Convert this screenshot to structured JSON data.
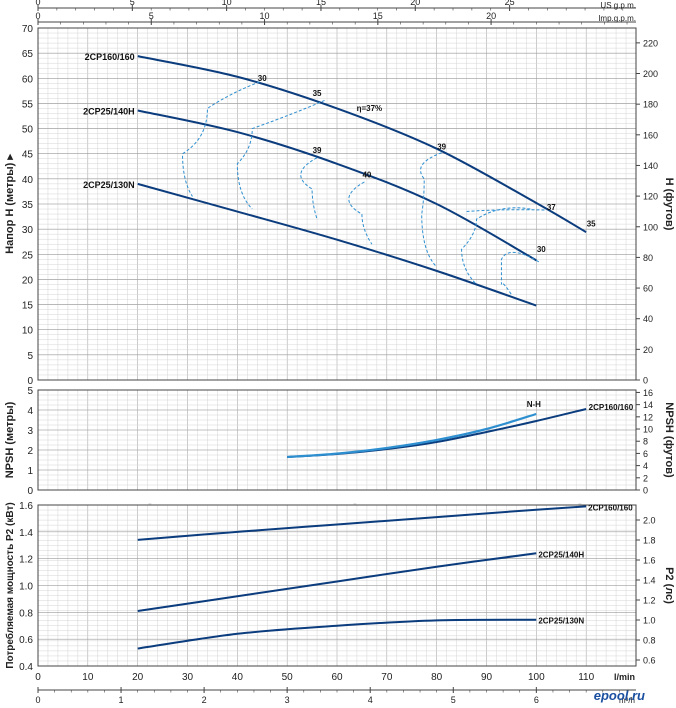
{
  "watermark": "ePool.ru",
  "logo": "epool.ru",
  "top_axes": {
    "us_label": "US g.p.m.",
    "imp_label": "Imp.g.p.m.",
    "us_ticks": [
      "0",
      "5",
      "10",
      "15",
      "20",
      "25"
    ],
    "imp_ticks": [
      "0",
      "5",
      "10",
      "15",
      "20"
    ]
  },
  "bottom_axes": {
    "lmin_label": "l/min",
    "m3h_label": "m³/h",
    "lmin_ticks": [
      "0",
      "10",
      "20",
      "30",
      "40",
      "50",
      "60",
      "70",
      "80",
      "90",
      "100",
      "110"
    ],
    "m3h_ticks": [
      "0",
      "1",
      "2",
      "3",
      "4",
      "5",
      "6"
    ]
  },
  "chart_data": [
    {
      "type": "line",
      "panel": "head",
      "ylabel": "Напор H (метры)",
      "y2label": "H (футов)",
      "xlabel": "l/min",
      "xlim": [
        0,
        120
      ],
      "ylim": [
        0,
        70
      ],
      "y2lim": [
        0,
        229.7
      ],
      "yticks": [
        "0",
        "5",
        "10",
        "15",
        "20",
        "25",
        "30",
        "35",
        "40",
        "45",
        "50",
        "55",
        "60",
        "65",
        "70"
      ],
      "y2ticks": [
        "0",
        "20",
        "40",
        "60",
        "80",
        "100",
        "120",
        "140",
        "160",
        "180",
        "200",
        "220"
      ],
      "grid": true,
      "series": [
        {
          "name": "2CP160/160",
          "color": "#0b3c7d",
          "x": [
            20,
            40,
            60,
            80,
            100,
            110
          ],
          "y": [
            64.4,
            60.3,
            54,
            46,
            35.2,
            29.4
          ]
        },
        {
          "name": "2CP25/140H",
          "color": "#0b3c7d",
          "x": [
            20,
            40,
            60,
            80,
            100
          ],
          "y": [
            53.6,
            49.3,
            43,
            35,
            23.8
          ]
        },
        {
          "name": "2CP25/130N",
          "color": "#0b3c7d",
          "x": [
            20,
            40,
            60,
            80,
            100
          ],
          "y": [
            39,
            33.5,
            27.9,
            21.7,
            14.8
          ]
        }
      ],
      "efficiency_label_eta": "η=37%",
      "efficiency_labels": [
        {
          "text": "30",
          "x": 45,
          "y": 59.5
        },
        {
          "text": "35",
          "x": 56,
          "y": 56.5
        },
        {
          "text": "39",
          "x": 56,
          "y": 45.1
        },
        {
          "text": "40",
          "x": 66,
          "y": 40.3
        },
        {
          "text": "39",
          "x": 81,
          "y": 45.8
        },
        {
          "text": "37",
          "x": 103,
          "y": 33.8
        },
        {
          "text": "35",
          "x": 111,
          "y": 30.5
        },
        {
          "text": "30",
          "x": 101,
          "y": 25.5
        }
      ]
    },
    {
      "type": "line",
      "panel": "npsh",
      "ylabel": "NPSH (метры)",
      "y2label": "NPSH (футов)",
      "xlim": [
        0,
        120
      ],
      "ylim": [
        0,
        5
      ],
      "y2lim": [
        0,
        16.4
      ],
      "yticks": [
        "0",
        "1",
        "2",
        "3",
        "4",
        "5"
      ],
      "y2ticks": [
        "0",
        "2",
        "4",
        "6",
        "8",
        "10",
        "12",
        "14",
        "16"
      ],
      "grid": true,
      "series": [
        {
          "name": "2CP160/160",
          "color": "#0b3c7d",
          "x": [
            50,
            60,
            70,
            80,
            90,
            100,
            110
          ],
          "y": [
            1.65,
            1.8,
            2.05,
            2.4,
            2.9,
            3.45,
            4.05
          ]
        },
        {
          "name": "N-H",
          "color": "#2e8fd0",
          "x": [
            50,
            60,
            70,
            80,
            90,
            100
          ],
          "y": [
            1.65,
            1.82,
            2.1,
            2.5,
            3.05,
            3.8
          ]
        }
      ]
    },
    {
      "type": "line",
      "panel": "power",
      "ylabel": "Потребляемая мощность P2 (кВт)",
      "y2label": "P2 (лс)",
      "xlabel": "l/min",
      "xlim": [
        0,
        120
      ],
      "ylim": [
        0.4,
        1.6
      ],
      "y2lim": [
        0.54,
        2.15
      ],
      "yticks": [
        "0.4",
        "0.6",
        "0.8",
        "1.0",
        "1.2",
        "1.4",
        "1.6"
      ],
      "y2ticks": [
        "0.6",
        "0.8",
        "1.0",
        "1.2",
        "1.4",
        "1.6",
        "1.8",
        "2.0"
      ],
      "grid": true,
      "series": [
        {
          "name": "2CP160/160",
          "color": "#0b3c7d",
          "x": [
            20,
            40,
            60,
            80,
            100,
            110
          ],
          "y": [
            1.34,
            1.4,
            1.455,
            1.51,
            1.565,
            1.59
          ]
        },
        {
          "name": "2CP25/140H",
          "color": "#0b3c7d",
          "x": [
            20,
            40,
            60,
            80,
            100
          ],
          "y": [
            0.81,
            0.92,
            1.03,
            1.14,
            1.24
          ]
        },
        {
          "name": "2CP25/130N",
          "color": "#0b3c7d",
          "x": [
            20,
            40,
            60,
            80,
            100
          ],
          "y": [
            0.53,
            0.64,
            0.7,
            0.74,
            0.745
          ]
        }
      ]
    }
  ]
}
